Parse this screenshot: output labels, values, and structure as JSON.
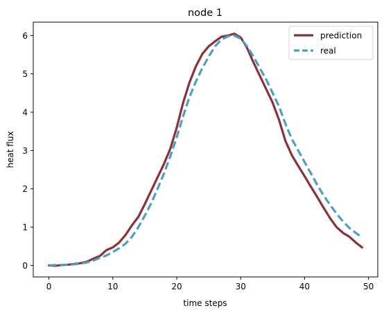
{
  "chart_data": {
    "type": "line",
    "title": "node 1",
    "xlabel": "time steps",
    "ylabel": "heat flux",
    "xlim": [
      -2.45,
      51.45
    ],
    "ylim": [
      -0.3,
      6.35
    ],
    "xticks": [
      0,
      10,
      20,
      30,
      40,
      50
    ],
    "yticks": [
      0,
      1,
      2,
      3,
      4,
      5,
      6
    ],
    "legend_position": "top-right",
    "grid": false,
    "series": [
      {
        "name": "prediction",
        "color": "#8b3038",
        "style": "solid",
        "x": [
          0,
          1,
          2,
          3,
          4,
          5,
          6,
          7,
          8,
          9,
          10,
          11,
          12,
          13,
          14,
          15,
          16,
          17,
          18,
          19,
          20,
          21,
          22,
          23,
          24,
          25,
          26,
          27,
          28,
          29,
          30,
          31,
          32,
          33,
          34,
          35,
          36,
          37,
          38,
          39,
          40,
          41,
          42,
          43,
          44,
          45,
          46,
          47,
          48,
          49
        ],
        "y": [
          0.0,
          -0.01,
          0.01,
          0.02,
          0.04,
          0.06,
          0.1,
          0.18,
          0.25,
          0.4,
          0.47,
          0.6,
          0.8,
          1.05,
          1.27,
          1.6,
          1.95,
          2.3,
          2.65,
          3.05,
          3.6,
          4.25,
          4.78,
          5.2,
          5.52,
          5.72,
          5.85,
          5.97,
          6.0,
          6.05,
          5.95,
          5.68,
          5.3,
          4.95,
          4.6,
          4.25,
          3.8,
          3.25,
          2.88,
          2.6,
          2.33,
          2.05,
          1.78,
          1.5,
          1.23,
          1.0,
          0.85,
          0.75,
          0.6,
          0.47
        ]
      },
      {
        "name": "real",
        "color": "#4c9ec1",
        "style": "dashed",
        "x": [
          0,
          1,
          2,
          3,
          4,
          5,
          6,
          7,
          8,
          9,
          10,
          11,
          12,
          13,
          14,
          15,
          16,
          17,
          18,
          19,
          20,
          21,
          22,
          23,
          24,
          25,
          26,
          27,
          28,
          29,
          30,
          31,
          32,
          33,
          34,
          35,
          36,
          37,
          38,
          39,
          40,
          41,
          42,
          43,
          44,
          45,
          46,
          47,
          48,
          49
        ],
        "y": [
          0.0,
          0.01,
          0.01,
          0.02,
          0.03,
          0.05,
          0.08,
          0.13,
          0.2,
          0.26,
          0.35,
          0.45,
          0.57,
          0.75,
          1.0,
          1.3,
          1.62,
          2.0,
          2.4,
          2.85,
          3.35,
          3.9,
          4.4,
          4.8,
          5.15,
          5.45,
          5.72,
          5.9,
          5.98,
          6.0,
          5.92,
          5.72,
          5.45,
          5.15,
          4.85,
          4.5,
          4.15,
          3.7,
          3.3,
          3.0,
          2.7,
          2.4,
          2.1,
          1.82,
          1.58,
          1.35,
          1.15,
          0.98,
          0.85,
          0.73
        ]
      }
    ]
  }
}
